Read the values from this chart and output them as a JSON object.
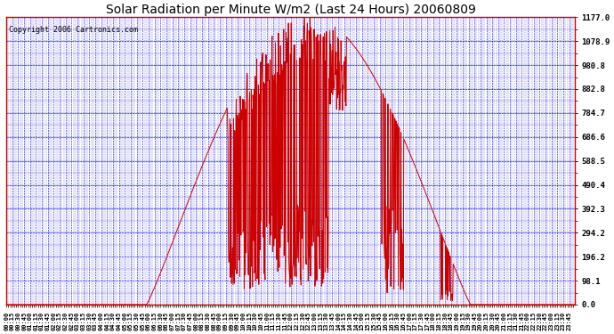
{
  "title": "Solar Radiation per Minute W/m2 (Last 24 Hours) 20060809",
  "copyright": "Copyright 2006 Cartronics.com",
  "background_color": "#ffffff",
  "plot_background": "#ffffff",
  "line_color": "#cc0000",
  "grid_color": "#0000cc",
  "axis_color": "#cc0000",
  "text_color": "#000000",
  "ytick_labels": [
    0.0,
    98.1,
    196.2,
    294.2,
    392.3,
    490.4,
    588.5,
    686.6,
    784.7,
    882.8,
    980.8,
    1078.9,
    1177.0
  ],
  "ymin": 0.0,
  "ymax": 1177.0,
  "num_points": 1440,
  "title_fontsize": 10,
  "copyright_fontsize": 6,
  "xtick_interval_minutes": 15
}
